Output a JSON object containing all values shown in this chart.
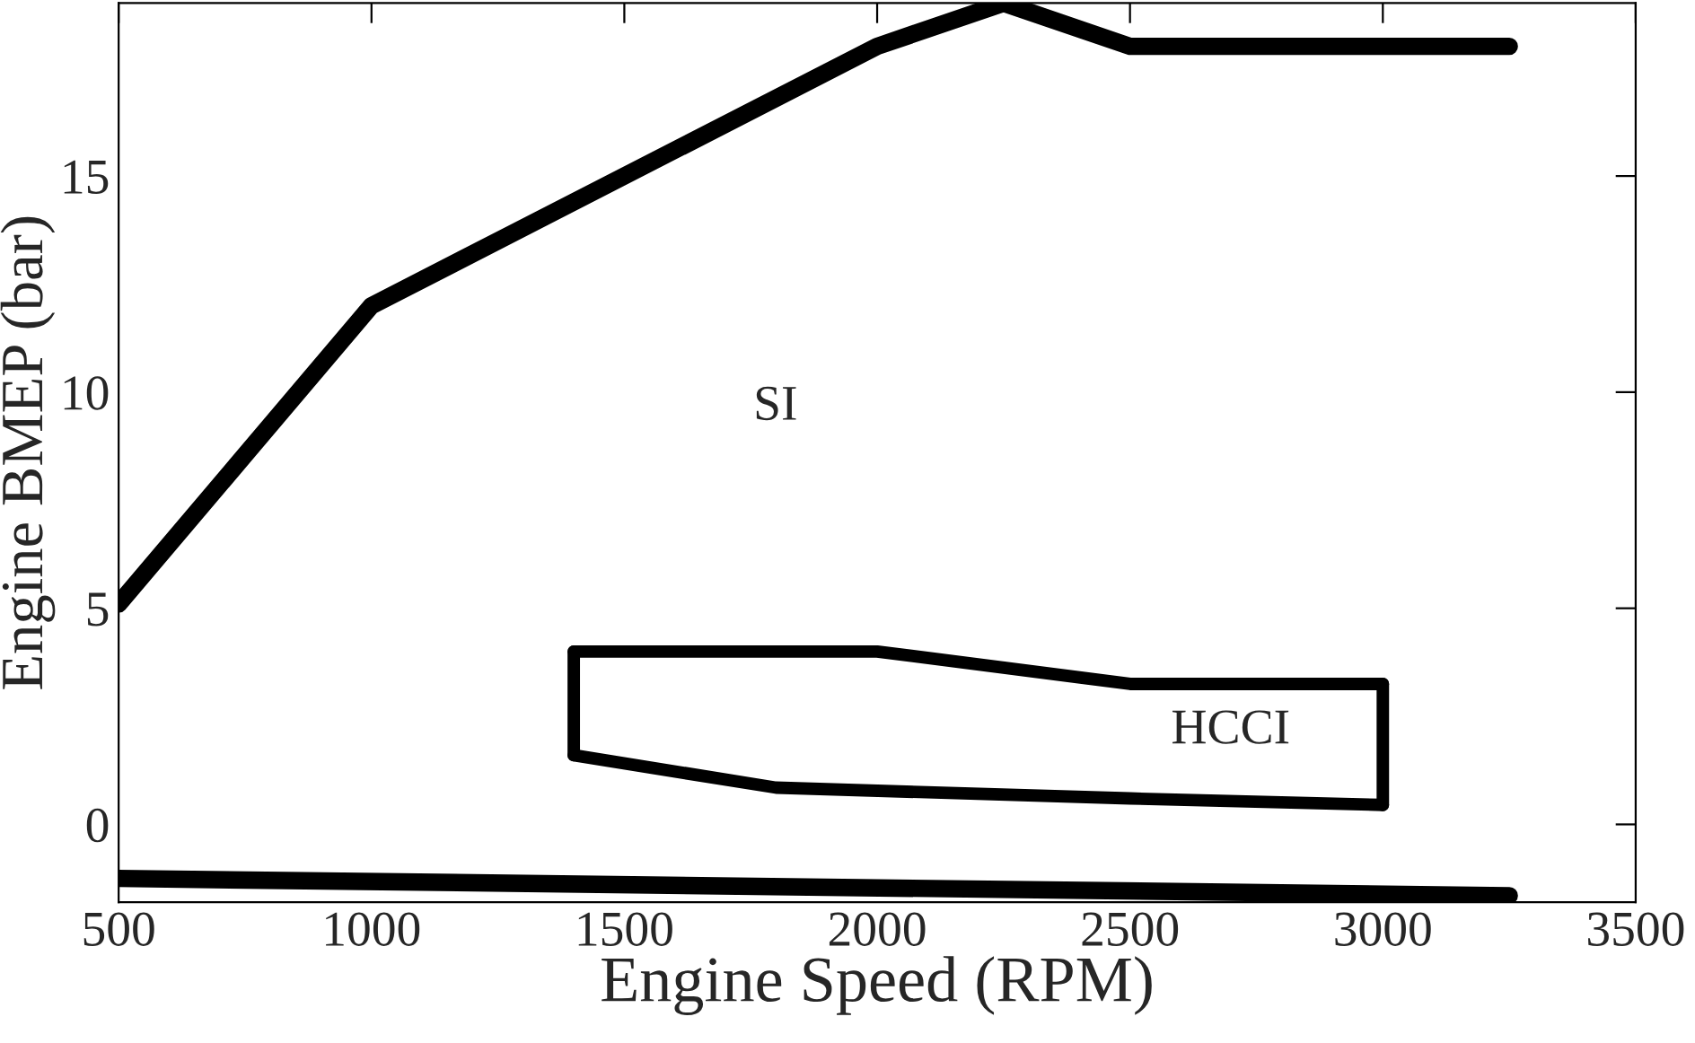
{
  "chart_data": {
    "type": "line",
    "xlabel": "Engine Speed (RPM)",
    "ylabel": "Engine BMEP (bar)",
    "xlim": [
      500,
      3500
    ],
    "xticks": [
      500,
      1000,
      1500,
      2000,
      2500,
      3000,
      3500
    ],
    "ylim": [
      -1.8,
      19
    ],
    "yticks": [
      0,
      5,
      10,
      15
    ],
    "grid": false,
    "legend": false,
    "series": [
      {
        "color": "#000000",
        "line_style": "solid",
        "x": [
          500,
          1000,
          2000,
          2250,
          2500,
          3250
        ],
        "values": [
          5.1,
          12,
          18,
          19,
          18,
          18
        ]
      },
      {
        "color": "#000000",
        "line_style": "solid",
        "x": [
          500,
          3250
        ],
        "values": [
          -1.25,
          -1.65
        ]
      },
      {
        "color": "#000000",
        "line_style": "solid",
        "x": [
          1400,
          2000,
          2500,
          3000
        ],
        "values": [
          4,
          4,
          3.25,
          3.25
        ]
      },
      {
        "color": "#000000",
        "line_style": "solid",
        "x": [
          1400,
          1800,
          2500,
          3000
        ],
        "values": [
          1.6,
          0.85,
          0.6,
          0.45
        ]
      },
      {
        "color": "#000000",
        "line_style": "solid",
        "x": [
          1400,
          1400
        ],
        "values": [
          1.6,
          4
        ]
      },
      {
        "color": "#000000",
        "line_style": "solid",
        "x": [
          3000,
          3000
        ],
        "values": [
          0.45,
          3.25
        ]
      }
    ],
    "annotations": [
      "SI",
      "HCCI"
    ]
  }
}
